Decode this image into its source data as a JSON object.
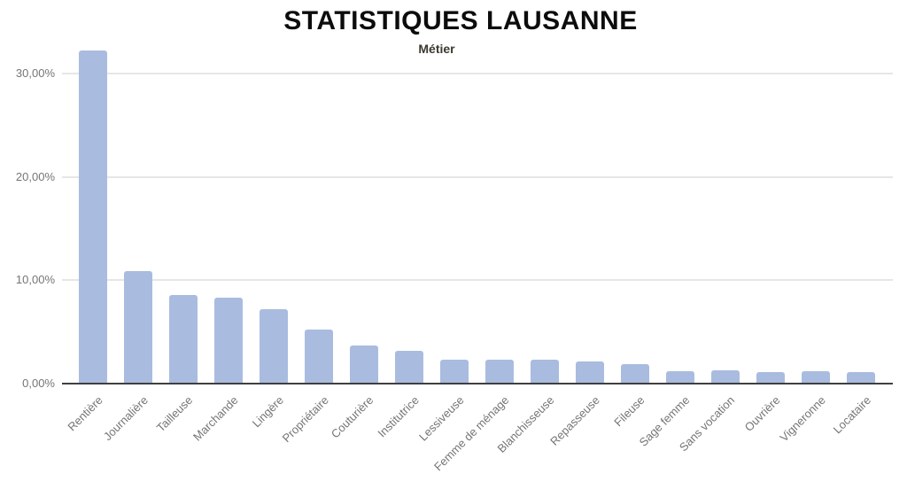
{
  "chart_data": {
    "type": "bar",
    "title": "STATISTIQUES LAUSANNE",
    "subtitle": "Métier",
    "categories": [
      "Rentière",
      "Journalière",
      "Tailleuse",
      "Marchande",
      "Lingère",
      "Propriétaire",
      "Couturière",
      "Institutrice",
      "Lessiveuse",
      "Femme de ménage",
      "Blanchisseuse",
      "Repasseuse",
      "Fileuse",
      "Sage femme",
      "Sans vocation",
      "Ouvrière",
      "Vigneronne",
      "Locataire"
    ],
    "values": [
      32.2,
      10.9,
      8.6,
      8.3,
      7.2,
      5.2,
      3.7,
      3.2,
      2.3,
      2.3,
      2.3,
      2.1,
      1.9,
      1.2,
      1.3,
      1.1,
      1.2,
      1.1
    ],
    "unit": "%",
    "y_ticks": [
      {
        "value": 0,
        "label": "0,00%"
      },
      {
        "value": 10,
        "label": "10,00%"
      },
      {
        "value": 20,
        "label": "20,00%"
      },
      {
        "value": 30,
        "label": "30,00%"
      }
    ],
    "ylim": [
      0,
      32.3
    ],
    "xlabel": "",
    "ylabel": "",
    "grid": true,
    "legend": "none"
  },
  "colors": {
    "background": "#ffffff",
    "bar": "#a9bcdf",
    "gridline": "#e6e6e6",
    "axis_line": "#3f3f3f",
    "tick_text": "#757575",
    "title_text": "#0c0c0c",
    "subtitle_text": "#3b382f"
  }
}
